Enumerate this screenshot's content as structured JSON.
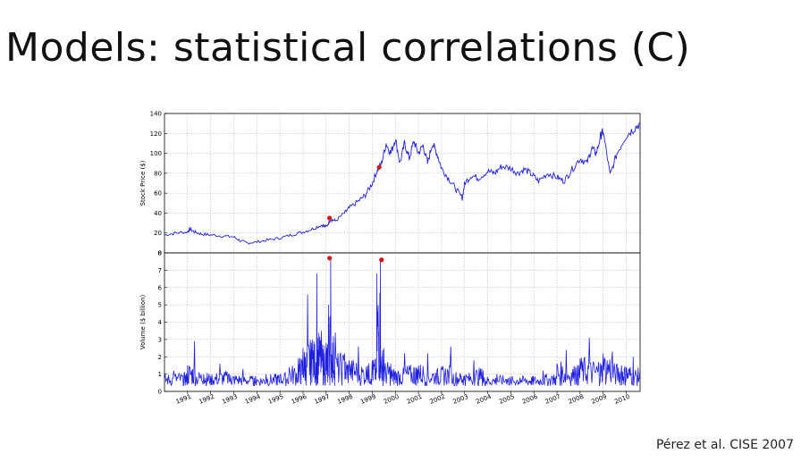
{
  "slide": {
    "title": "Models: statistical correlations (C)",
    "citation": "Pérez et al. CISE 2007"
  },
  "colors": {
    "series": "#1f1fe0",
    "markers": "#e01010",
    "grid": "#b0b0b0"
  },
  "chart_data": [
    {
      "type": "line",
      "title": "",
      "xlabel": "",
      "ylabel": "Stock Price ($)",
      "xlim": [
        1990.0,
        2010.6
      ],
      "ylim": [
        0,
        140
      ],
      "yticks": [
        0,
        20,
        40,
        60,
        80,
        100,
        120,
        140
      ],
      "grid": true,
      "series": [
        {
          "x": [
            1990.0,
            1990.5,
            1991.0,
            1991.1,
            1991.3,
            1991.6,
            1992.0,
            1992.5,
            1993.0,
            1993.3,
            1993.6,
            1994.0,
            1994.5,
            1995.0,
            1995.5,
            1996.0,
            1996.4,
            1996.8,
            1997.0,
            1997.2,
            1997.4,
            1997.8,
            1998.0,
            1998.4,
            1998.7,
            1999.0,
            1999.2,
            1999.4,
            1999.6,
            1999.8,
            2000.0,
            2000.2,
            2000.4,
            2000.6,
            2000.8,
            2001.0,
            2001.2,
            2001.4,
            2001.6,
            2001.8,
            2002.0,
            2002.3,
            2002.6,
            2002.9,
            2003.0,
            2003.3,
            2003.6,
            2004.0,
            2004.3,
            2004.6,
            2005.0,
            2005.3,
            2005.6,
            2005.9,
            2006.2,
            2006.6,
            2007.0,
            2007.3,
            2007.6,
            2008.0,
            2008.3,
            2008.5,
            2008.7,
            2008.9,
            2009.0,
            2009.3,
            2009.6,
            2010.0,
            2010.3,
            2010.6
          ],
          "values": [
            18,
            20,
            21,
            24,
            21,
            19,
            18,
            17,
            16,
            12,
            10,
            11,
            13,
            15,
            18,
            21,
            24,
            28,
            26,
            34,
            32,
            40,
            45,
            52,
            58,
            70,
            82,
            90,
            110,
            100,
            115,
            90,
            110,
            95,
            112,
            100,
            108,
            90,
            110,
            100,
            85,
            75,
            65,
            55,
            70,
            78,
            75,
            82,
            80,
            87,
            85,
            80,
            84,
            79,
            72,
            80,
            76,
            72,
            82,
            95,
            90,
            105,
            100,
            118,
            122,
            78,
            100,
            118,
            124,
            130
          ]
        }
      ],
      "highlighted_points": [
        {
          "x": 1997.15,
          "y": 35
        },
        {
          "x": 1999.3,
          "y": 86
        }
      ]
    },
    {
      "type": "line",
      "title": "",
      "xlabel": "",
      "ylabel": "Volume ($ billion)",
      "xlim": [
        1990.0,
        2010.6
      ],
      "ylim": [
        0,
        8
      ],
      "yticks": [
        0,
        1,
        2,
        3,
        4,
        5,
        6,
        7,
        8
      ],
      "grid": true,
      "x_tick_labels": [
        "1991",
        "1992",
        "1993",
        "1994",
        "1995",
        "1996",
        "1997",
        "1998",
        "1999",
        "2000",
        "2001",
        "2002",
        "2003",
        "2004",
        "2005",
        "2006",
        "2007",
        "2008",
        "2009",
        "2010"
      ],
      "series": [
        {
          "x": [
            1990.0,
            1990.4,
            1990.8,
            1991.0,
            1991.3,
            1991.7,
            1992.0,
            1992.4,
            1992.8,
            1993.0,
            1993.4,
            1993.8,
            1994.0,
            1994.4,
            1994.8,
            1995.0,
            1995.4,
            1995.8,
            1996.0,
            1996.2,
            1996.4,
            1996.6,
            1996.8,
            1997.0,
            1997.1,
            1997.2,
            1997.4,
            1997.8,
            1998.0,
            1998.4,
            1998.8,
            1999.0,
            1999.2,
            1999.35,
            1999.5,
            1999.8,
            2000.0,
            2000.4,
            2000.8,
            2001.0,
            2001.4,
            2001.8,
            2002.0,
            2002.4,
            2002.8,
            2003.0,
            2003.4,
            2003.8,
            2004.0,
            2004.4,
            2004.8,
            2005.0,
            2005.4,
            2005.8,
            2006.0,
            2006.4,
            2006.8,
            2007.0,
            2007.4,
            2007.8,
            2008.0,
            2008.4,
            2008.8,
            2009.0,
            2009.4,
            2009.8,
            2010.0,
            2010.3,
            2010.6
          ],
          "values": [
            0.8,
            1.2,
            0.9,
            1.5,
            2.9,
            1.0,
            0.9,
            1.6,
            1.0,
            0.8,
            1.3,
            0.7,
            0.6,
            1.0,
            0.8,
            0.9,
            1.4,
            1.9,
            2.5,
            5.6,
            3.0,
            6.8,
            3.5,
            2.8,
            5.0,
            7.6,
            3.4,
            2.2,
            1.8,
            2.6,
            1.5,
            1.8,
            6.8,
            7.5,
            2.5,
            1.6,
            1.2,
            2.2,
            1.4,
            1.5,
            2.2,
            1.2,
            1.4,
            2.6,
            1.0,
            0.9,
            1.8,
            1.2,
            0.6,
            1.0,
            0.7,
            0.5,
            0.8,
            0.6,
            0.6,
            1.2,
            0.8,
            1.6,
            2.4,
            1.4,
            1.9,
            3.1,
            1.7,
            2.2,
            2.3,
            1.5,
            1.4,
            2.0,
            1.2
          ]
        }
      ],
      "highlighted_points": [
        {
          "x": 1997.15,
          "y": 7.7
        },
        {
          "x": 1999.4,
          "y": 7.6
        }
      ]
    }
  ]
}
